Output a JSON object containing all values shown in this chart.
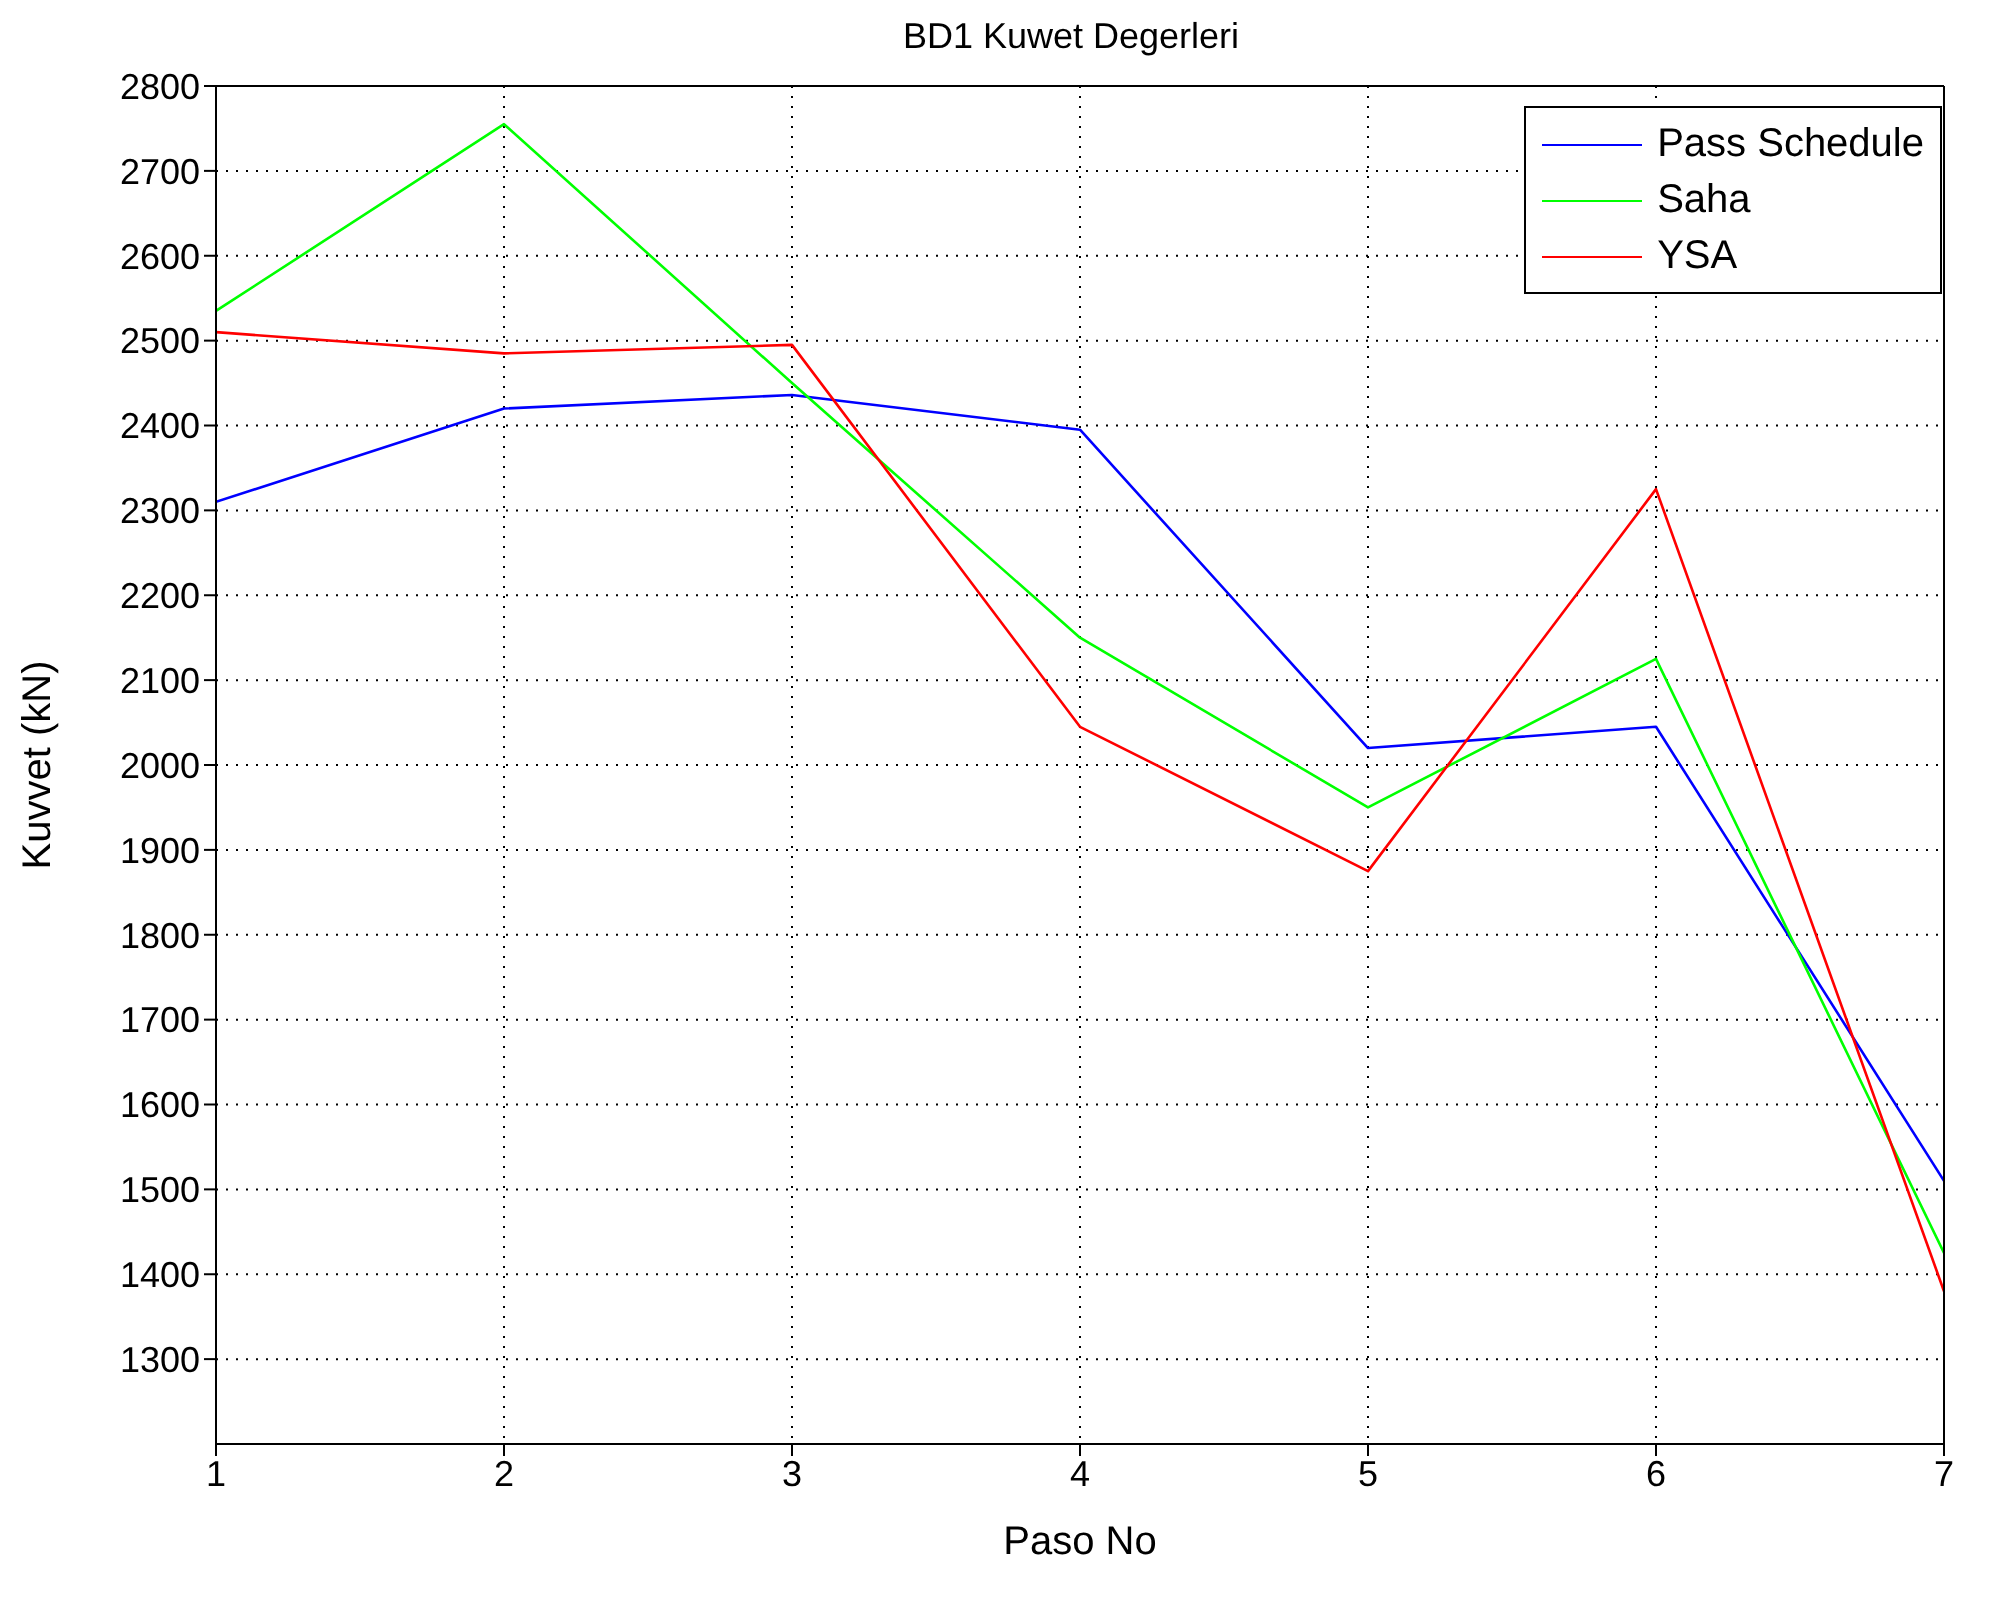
{
  "chart_data": {
    "type": "line",
    "title": "BD1 Kuwet Degerleri",
    "xlabel": "Paso No",
    "ylabel": "Kuvvet (kN)",
    "x": [
      1,
      2,
      3,
      4,
      5,
      6,
      7
    ],
    "series": [
      {
        "name": "Pass Schedule",
        "color": "#0000ff",
        "values": [
          2310,
          2420,
          2436,
          2395,
          2020,
          2045,
          1510
        ]
      },
      {
        "name": "Saha",
        "color": "#00ff00",
        "values": [
          2535,
          2755,
          2450,
          2150,
          1950,
          2125,
          1425
        ]
      },
      {
        "name": "YSA",
        "color": "#ff0000",
        "values": [
          2510,
          2485,
          2495,
          2045,
          1875,
          2325,
          1380
        ]
      }
    ],
    "xlim": [
      1,
      7
    ],
    "xticks": [
      1,
      2,
      3,
      4,
      5,
      6,
      7
    ],
    "ylim": [
      1200,
      2800
    ],
    "yticks": [
      1300,
      1400,
      1500,
      1600,
      1700,
      1800,
      1900,
      2000,
      2100,
      2200,
      2300,
      2400,
      2500,
      2600,
      2700,
      2800
    ],
    "grid": true,
    "legend": "top right",
    "marker": "none",
    "line_style": "solid"
  }
}
